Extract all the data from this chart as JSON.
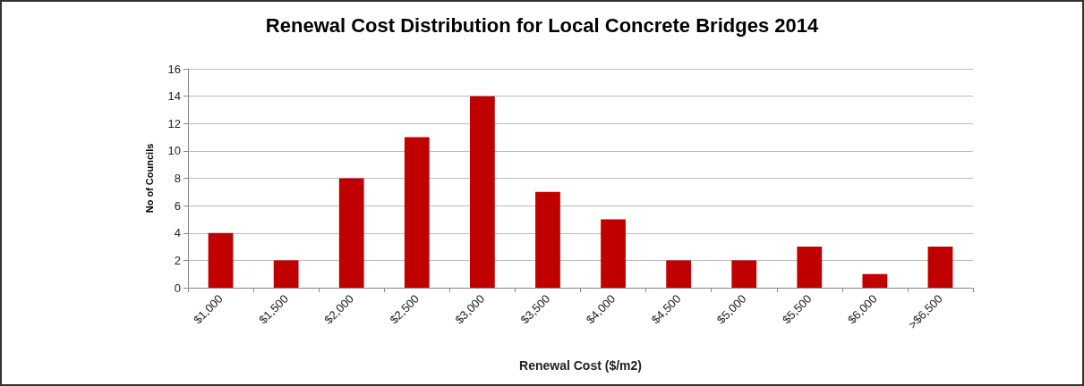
{
  "chart_data": {
    "type": "bar",
    "title": "Renewal Cost Distribution for Local Concrete Bridges 2014",
    "xlabel": "Renewal Cost ($/m2)",
    "ylabel": "No of Councils",
    "categories": [
      "$1,000",
      "$1,500",
      "$2,000",
      "$2,500",
      "$3,000",
      "$3,500",
      "$4,000",
      "$4,500",
      "$5,000",
      "$5,500",
      "$6,000",
      ">$6,500"
    ],
    "values": [
      4,
      2,
      8,
      11,
      14,
      7,
      5,
      2,
      2,
      3,
      1,
      3
    ],
    "color": "#c00000",
    "ylim": [
      0,
      16
    ],
    "yticks": [
      0,
      2,
      4,
      6,
      8,
      10,
      12,
      14,
      16
    ],
    "grid": "y"
  }
}
